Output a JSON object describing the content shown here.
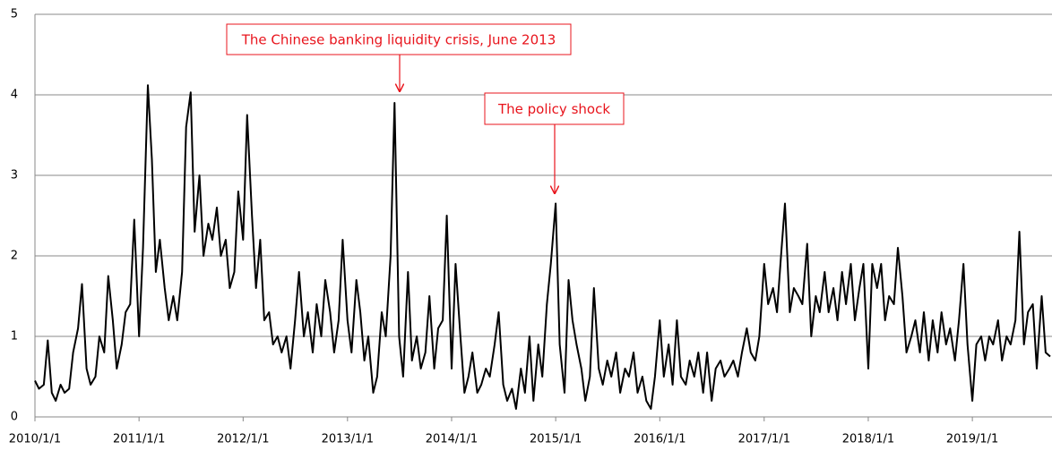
{
  "chart_data": {
    "type": "line",
    "x": [
      "2010/1/1",
      "2010/1/15",
      "2010/2/1",
      "2010/2/15",
      "2010/3/1",
      "2010/3/15",
      "2010/4/1",
      "2010/4/15",
      "2010/5/1",
      "2010/5/15",
      "2010/6/1",
      "2010/6/15",
      "2010/7/1",
      "2010/7/15",
      "2010/8/1",
      "2010/8/15",
      "2010/9/1",
      "2010/9/15",
      "2010/10/1",
      "2010/10/15",
      "2010/11/1",
      "2010/11/15",
      "2010/12/1",
      "2010/12/15",
      "2011/1/1",
      "2011/1/15",
      "2011/2/1",
      "2011/2/15",
      "2011/3/1",
      "2011/3/15",
      "2011/4/1",
      "2011/4/15",
      "2011/5/1",
      "2011/5/15",
      "2011/6/1",
      "2011/6/15",
      "2011/7/1",
      "2011/7/15",
      "2011/8/1",
      "2011/8/15",
      "2011/9/1",
      "2011/9/15",
      "2011/10/1",
      "2011/10/15",
      "2011/11/1",
      "2011/11/15",
      "2011/12/1",
      "2011/12/15",
      "2012/1/1",
      "2012/1/15",
      "2012/2/1",
      "2012/2/15",
      "2012/3/1",
      "2012/3/15",
      "2012/4/1",
      "2012/4/15",
      "2012/5/1",
      "2012/5/15",
      "2012/6/1",
      "2012/6/15",
      "2012/7/1",
      "2012/7/15",
      "2012/8/1",
      "2012/8/15",
      "2012/9/1",
      "2012/9/15",
      "2012/10/1",
      "2012/10/15",
      "2012/11/1",
      "2012/11/15",
      "2012/12/1",
      "2012/12/15",
      "2013/1/1",
      "2013/1/15",
      "2013/2/1",
      "2013/2/15",
      "2013/3/1",
      "2013/3/15",
      "2013/4/1",
      "2013/4/15",
      "2013/5/1",
      "2013/5/15",
      "2013/6/1",
      "2013/6/15",
      "2013/7/1",
      "2013/7/15",
      "2013/8/1",
      "2013/8/15",
      "2013/9/1",
      "2013/9/15",
      "2013/10/1",
      "2013/10/15",
      "2013/11/1",
      "2013/11/15",
      "2013/12/1",
      "2013/12/15",
      "2014/1/1",
      "2014/1/15",
      "2014/2/1",
      "2014/2/15",
      "2014/3/1",
      "2014/3/15",
      "2014/4/1",
      "2014/4/15",
      "2014/5/1",
      "2014/5/15",
      "2014/6/1",
      "2014/6/15",
      "2014/7/1",
      "2014/7/15",
      "2014/8/1",
      "2014/8/15",
      "2014/9/1",
      "2014/9/15",
      "2014/10/1",
      "2014/10/15",
      "2014/11/1",
      "2014/11/15",
      "2014/12/1",
      "2014/12/15",
      "2015/1/1",
      "2015/1/15",
      "2015/2/1",
      "2015/2/15",
      "2015/3/1",
      "2015/3/15",
      "2015/4/1",
      "2015/4/15",
      "2015/5/1",
      "2015/5/15",
      "2015/6/1",
      "2015/6/15",
      "2015/7/1",
      "2015/7/15",
      "2015/8/1",
      "2015/8/15",
      "2015/9/1",
      "2015/9/15",
      "2015/10/1",
      "2015/10/15",
      "2015/11/1",
      "2015/11/15",
      "2015/12/1",
      "2015/12/15",
      "2016/1/1",
      "2016/1/15",
      "2016/2/1",
      "2016/2/15",
      "2016/3/1",
      "2016/3/15",
      "2016/4/1",
      "2016/4/15",
      "2016/5/1",
      "2016/5/15",
      "2016/6/1",
      "2016/6/15",
      "2016/7/1",
      "2016/7/15",
      "2016/8/1",
      "2016/8/15",
      "2016/9/1",
      "2016/9/15",
      "2016/10/1",
      "2016/10/15",
      "2016/11/1",
      "2016/11/15",
      "2016/12/1",
      "2016/12/15",
      "2017/1/1",
      "2017/1/15",
      "2017/2/1",
      "2017/2/15",
      "2017/3/1",
      "2017/3/15",
      "2017/4/1",
      "2017/4/15",
      "2017/5/1",
      "2017/5/15",
      "2017/6/1",
      "2017/6/15",
      "2017/7/1",
      "2017/7/15",
      "2017/8/1",
      "2017/8/15",
      "2017/9/1",
      "2017/9/15",
      "2017/10/1",
      "2017/10/15",
      "2017/11/1",
      "2017/11/15",
      "2017/12/1",
      "2017/12/15",
      "2018/1/1",
      "2018/1/15",
      "2018/2/1",
      "2018/2/15",
      "2018/3/1",
      "2018/3/15",
      "2018/4/1",
      "2018/4/15",
      "2018/5/1",
      "2018/5/15",
      "2018/6/1",
      "2018/6/15",
      "2018/7/1",
      "2018/7/15",
      "2018/8/1",
      "2018/8/15",
      "2018/9/1",
      "2018/9/15",
      "2018/10/1",
      "2018/10/15",
      "2018/11/1",
      "2018/11/15",
      "2018/12/1",
      "2018/12/15",
      "2019/1/1",
      "2019/1/15",
      "2019/2/1",
      "2019/2/15",
      "2019/3/1",
      "2019/3/15",
      "2019/4/1",
      "2019/4/15",
      "2019/5/1",
      "2019/5/15",
      "2019/6/1",
      "2019/6/15",
      "2019/7/1",
      "2019/7/15",
      "2019/8/1",
      "2019/8/15",
      "2019/9/1",
      "2019/9/15",
      "2019/10/1"
    ],
    "series": [
      {
        "color": "#000000",
        "values": [
          0.45,
          0.35,
          0.4,
          0.95,
          0.3,
          0.2,
          0.4,
          0.3,
          0.35,
          0.8,
          1.1,
          1.65,
          0.6,
          0.4,
          0.5,
          1.0,
          0.8,
          1.75,
          1.2,
          0.6,
          0.9,
          1.3,
          1.4,
          2.45,
          1.0,
          2.1,
          4.12,
          3.2,
          1.8,
          2.2,
          1.6,
          1.2,
          1.5,
          1.2,
          1.8,
          3.6,
          4.03,
          2.3,
          3.0,
          2.0,
          2.4,
          2.2,
          2.6,
          2.0,
          2.2,
          1.6,
          1.8,
          2.8,
          2.2,
          3.75,
          2.5,
          1.6,
          2.2,
          1.2,
          1.3,
          0.9,
          1.0,
          0.8,
          1.0,
          0.6,
          1.2,
          1.8,
          1.0,
          1.3,
          0.8,
          1.4,
          1.0,
          1.7,
          1.3,
          0.8,
          1.2,
          2.2,
          1.2,
          0.8,
          1.7,
          1.3,
          0.7,
          1.0,
          0.3,
          0.5,
          1.3,
          1.0,
          2.0,
          3.9,
          1.0,
          0.5,
          1.8,
          0.7,
          1.0,
          0.6,
          0.8,
          1.5,
          0.6,
          1.1,
          1.2,
          2.5,
          0.6,
          1.9,
          1.0,
          0.3,
          0.5,
          0.8,
          0.3,
          0.4,
          0.6,
          0.5,
          0.9,
          1.3,
          0.4,
          0.2,
          0.35,
          0.1,
          0.6,
          0.3,
          1.0,
          0.2,
          0.9,
          0.5,
          1.4,
          1.9,
          2.65,
          0.9,
          0.3,
          1.7,
          1.2,
          0.9,
          0.6,
          0.2,
          0.5,
          1.6,
          0.6,
          0.4,
          0.7,
          0.5,
          0.8,
          0.3,
          0.6,
          0.5,
          0.8,
          0.3,
          0.5,
          0.2,
          0.1,
          0.5,
          1.2,
          0.5,
          0.9,
          0.4,
          1.2,
          0.5,
          0.4,
          0.7,
          0.5,
          0.8,
          0.3,
          0.8,
          0.2,
          0.6,
          0.7,
          0.5,
          0.6,
          0.7,
          0.5,
          0.8,
          1.1,
          0.8,
          0.7,
          1.0,
          1.9,
          1.4,
          1.6,
          1.3,
          2.0,
          2.65,
          1.3,
          1.6,
          1.5,
          1.4,
          2.15,
          1.0,
          1.5,
          1.3,
          1.8,
          1.3,
          1.6,
          1.2,
          1.8,
          1.4,
          1.9,
          1.2,
          1.6,
          1.9,
          0.6,
          1.9,
          1.6,
          1.9,
          1.2,
          1.5,
          1.4,
          2.1,
          1.5,
          0.8,
          1.0,
          1.2,
          0.8,
          1.3,
          0.7,
          1.2,
          0.8,
          1.3,
          0.9,
          1.1,
          0.7,
          1.2,
          1.9,
          0.9,
          0.2,
          0.9,
          1.0,
          0.7,
          1.0,
          0.9,
          1.2,
          0.7,
          1.0,
          0.9,
          1.2,
          2.3,
          0.9,
          1.3,
          1.4,
          0.6,
          1.5,
          0.8,
          0.75
        ]
      }
    ],
    "xlim": [
      "2010/1/1",
      "2019/10/1"
    ],
    "xticks": [
      "2010/1/1",
      "2011/1/1",
      "2012/1/1",
      "2013/1/1",
      "2014/1/1",
      "2015/1/1",
      "2016/1/1",
      "2017/1/1",
      "2018/1/1",
      "2019/1/1"
    ],
    "ylim": [
      0,
      5
    ],
    "yticks": [
      0,
      1,
      2,
      3,
      4,
      5
    ],
    "grid": true,
    "annotations": [
      {
        "text": "The Chinese banking liquidity crisis, June 2013"
      },
      {
        "text": "The policy shock"
      }
    ]
  }
}
